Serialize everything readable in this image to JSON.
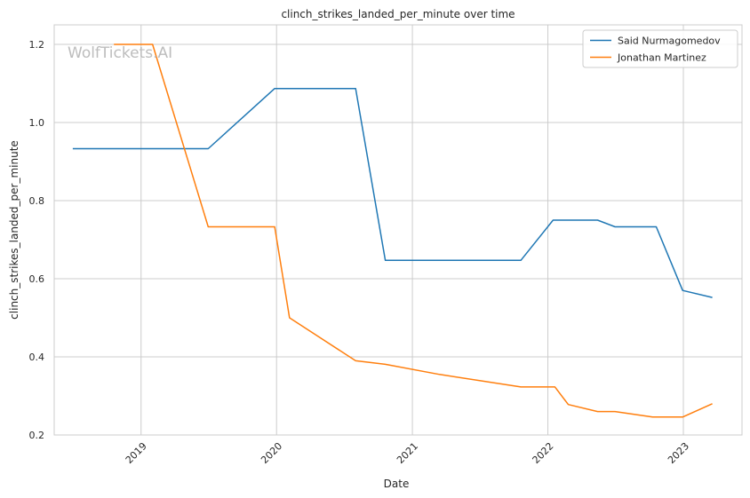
{
  "chart_data": {
    "type": "line",
    "title": "clinch_strikes_landed_per_minute over time",
    "xlabel": "Date",
    "ylabel": "clinch_strikes_landed_per_minute",
    "watermark": "WolfTickets.AI",
    "xlim": [
      "2018-05-12",
      "2023-06-08"
    ],
    "ylim": [
      0.2,
      1.25
    ],
    "x_ticks": [
      "2019",
      "2020",
      "2021",
      "2022",
      "2023"
    ],
    "x_tick_dates": [
      "2019-01-01",
      "2020-01-01",
      "2021-01-01",
      "2022-01-01",
      "2023-01-01"
    ],
    "y_ticks": [
      "0.2",
      "0.4",
      "0.6",
      "0.8",
      "1.0",
      "1.2"
    ],
    "y_tick_values": [
      0.2,
      0.4,
      0.6,
      0.8,
      1.0,
      1.2
    ],
    "grid": true,
    "legend_position": "top-right",
    "series": [
      {
        "name": "Said Nurmagomedov",
        "color": "#1f77b4",
        "points": [
          [
            "2018-07-01",
            0.933
          ],
          [
            "2019-07-01",
            0.933
          ],
          [
            "2019-12-27",
            1.087
          ],
          [
            "2020-08-01",
            1.087
          ],
          [
            "2020-10-20",
            0.647
          ],
          [
            "2021-10-20",
            0.647
          ],
          [
            "2022-01-15",
            0.75
          ],
          [
            "2022-05-15",
            0.75
          ],
          [
            "2022-07-01",
            0.733
          ],
          [
            "2022-10-20",
            0.733
          ],
          [
            "2022-12-30",
            0.57
          ],
          [
            "2023-03-20",
            0.552
          ]
        ]
      },
      {
        "name": "Jonathan Martinez",
        "color": "#ff7f0e",
        "points": [
          [
            "2018-10-20",
            1.2
          ],
          [
            "2019-02-01",
            1.2
          ],
          [
            "2019-07-01",
            0.733
          ],
          [
            "2019-12-27",
            0.733
          ],
          [
            "2020-02-05",
            0.5
          ],
          [
            "2020-08-01",
            0.39
          ],
          [
            "2020-10-20",
            0.381
          ],
          [
            "2021-03-15",
            0.355
          ],
          [
            "2021-10-20",
            0.323
          ],
          [
            "2022-01-20",
            0.323
          ],
          [
            "2022-02-25",
            0.278
          ],
          [
            "2022-05-15",
            0.26
          ],
          [
            "2022-07-01",
            0.26
          ],
          [
            "2022-10-10",
            0.246
          ],
          [
            "2022-12-30",
            0.246
          ],
          [
            "2023-03-20",
            0.28
          ]
        ]
      }
    ]
  }
}
